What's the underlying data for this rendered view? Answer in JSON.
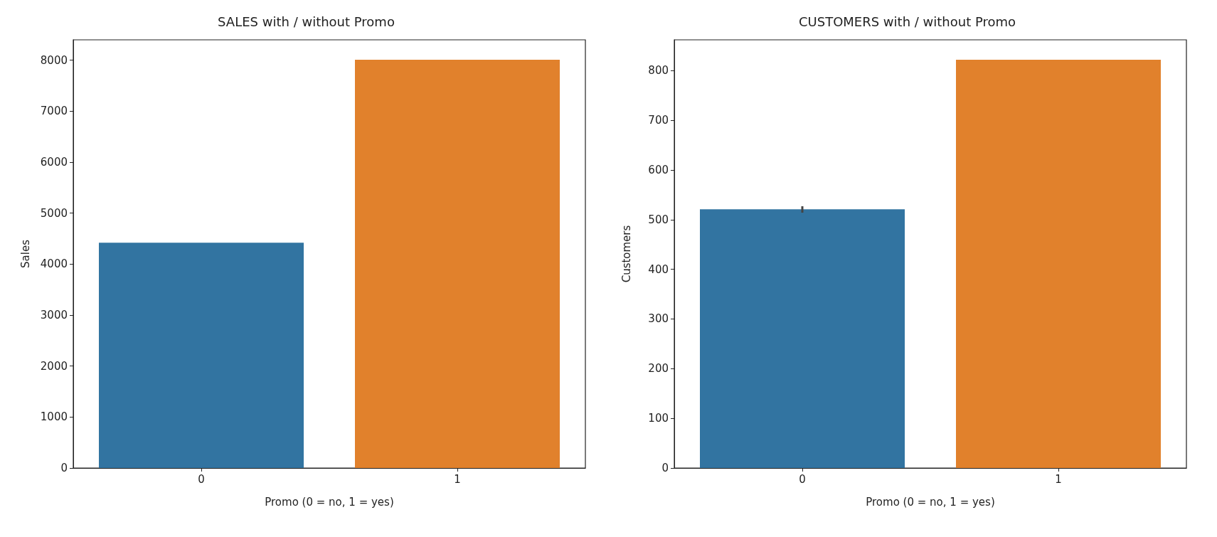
{
  "chart_data": [
    {
      "type": "bar",
      "title": "SALES with / without Promo",
      "xlabel": "Promo (0 = no, 1 = yes)",
      "ylabel": "Sales",
      "categories": [
        "0",
        "1"
      ],
      "values": [
        4420,
        8010
      ],
      "colors": [
        "#3274a1",
        "#e1812c"
      ],
      "ylim": [
        0,
        8400
      ],
      "yticks": [
        0,
        1000,
        2000,
        3000,
        4000,
        5000,
        6000,
        7000,
        8000
      ],
      "grid": false
    },
    {
      "type": "bar",
      "title": "CUSTOMERS with / without Promo",
      "xlabel": "Promo (0 = no, 1 = yes)",
      "ylabel": "Customers",
      "categories": [
        "0",
        "1"
      ],
      "values": [
        521,
        822
      ],
      "errors": [
        [
          514,
          527
        ],
        null
      ],
      "colors": [
        "#3274a1",
        "#e1812c"
      ],
      "ylim": [
        0,
        862
      ],
      "yticks": [
        0,
        100,
        200,
        300,
        400,
        500,
        600,
        700,
        800
      ],
      "grid": false
    }
  ]
}
